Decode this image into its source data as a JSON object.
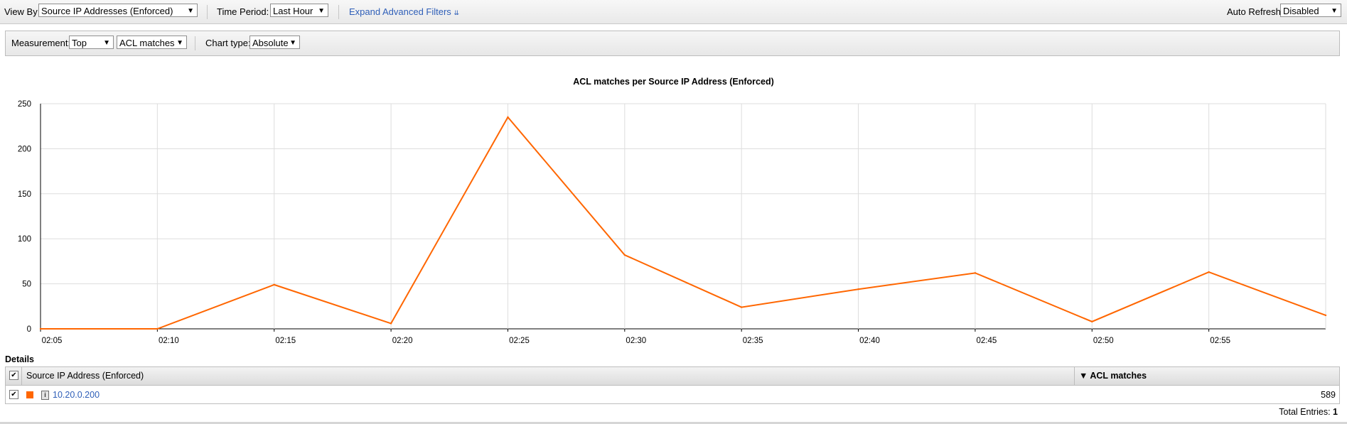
{
  "toolbar": {
    "view_by_label": "View By:",
    "view_by_value": "Source IP Addresses (Enforced)",
    "time_period_label": "Time Period:",
    "time_period_value": "Last Hour",
    "expand_filters": "Expand Advanced Filters",
    "auto_refresh_label": "Auto Refresh",
    "auto_refresh_value": "Disabled"
  },
  "filters": {
    "measurement_label": "Measurement:",
    "measurement_value": "Top",
    "metric_value": "ACL matches",
    "chart_type_label": "Chart type:",
    "chart_type_value": "Absolute"
  },
  "chart_data": {
    "type": "line",
    "title": "ACL matches per Source IP Address (Enforced)",
    "xlabel": "",
    "ylabel": "",
    "x": [
      "02:05",
      "02:10",
      "02:15",
      "02:20",
      "02:25",
      "02:30",
      "02:35",
      "02:40",
      "02:45",
      "02:50",
      "02:55",
      "03:00"
    ],
    "x_tick_labels": [
      "02:05",
      "02:10",
      "02:15",
      "02:20",
      "02:25",
      "02:30",
      "02:35",
      "02:40",
      "02:45",
      "02:50",
      "02:55"
    ],
    "y_ticks": [
      "0",
      "50",
      "100",
      "150",
      "200",
      "250"
    ],
    "ylim": [
      0,
      250
    ],
    "grid": true,
    "legend": "none",
    "series": [
      {
        "color": "#ff6600",
        "values": [
          0,
          0,
          49,
          6,
          235,
          82,
          24,
          44,
          62,
          8,
          63,
          15
        ]
      }
    ]
  },
  "details": {
    "heading": "Details",
    "columns": [
      "Source IP Address (Enforced)",
      "▼ ACL matches"
    ],
    "rows": [
      {
        "ip": "10.20.0.200",
        "matches": "589",
        "color": "#ff6600"
      }
    ],
    "total_label": "Total Entries:",
    "total_value": "1"
  }
}
